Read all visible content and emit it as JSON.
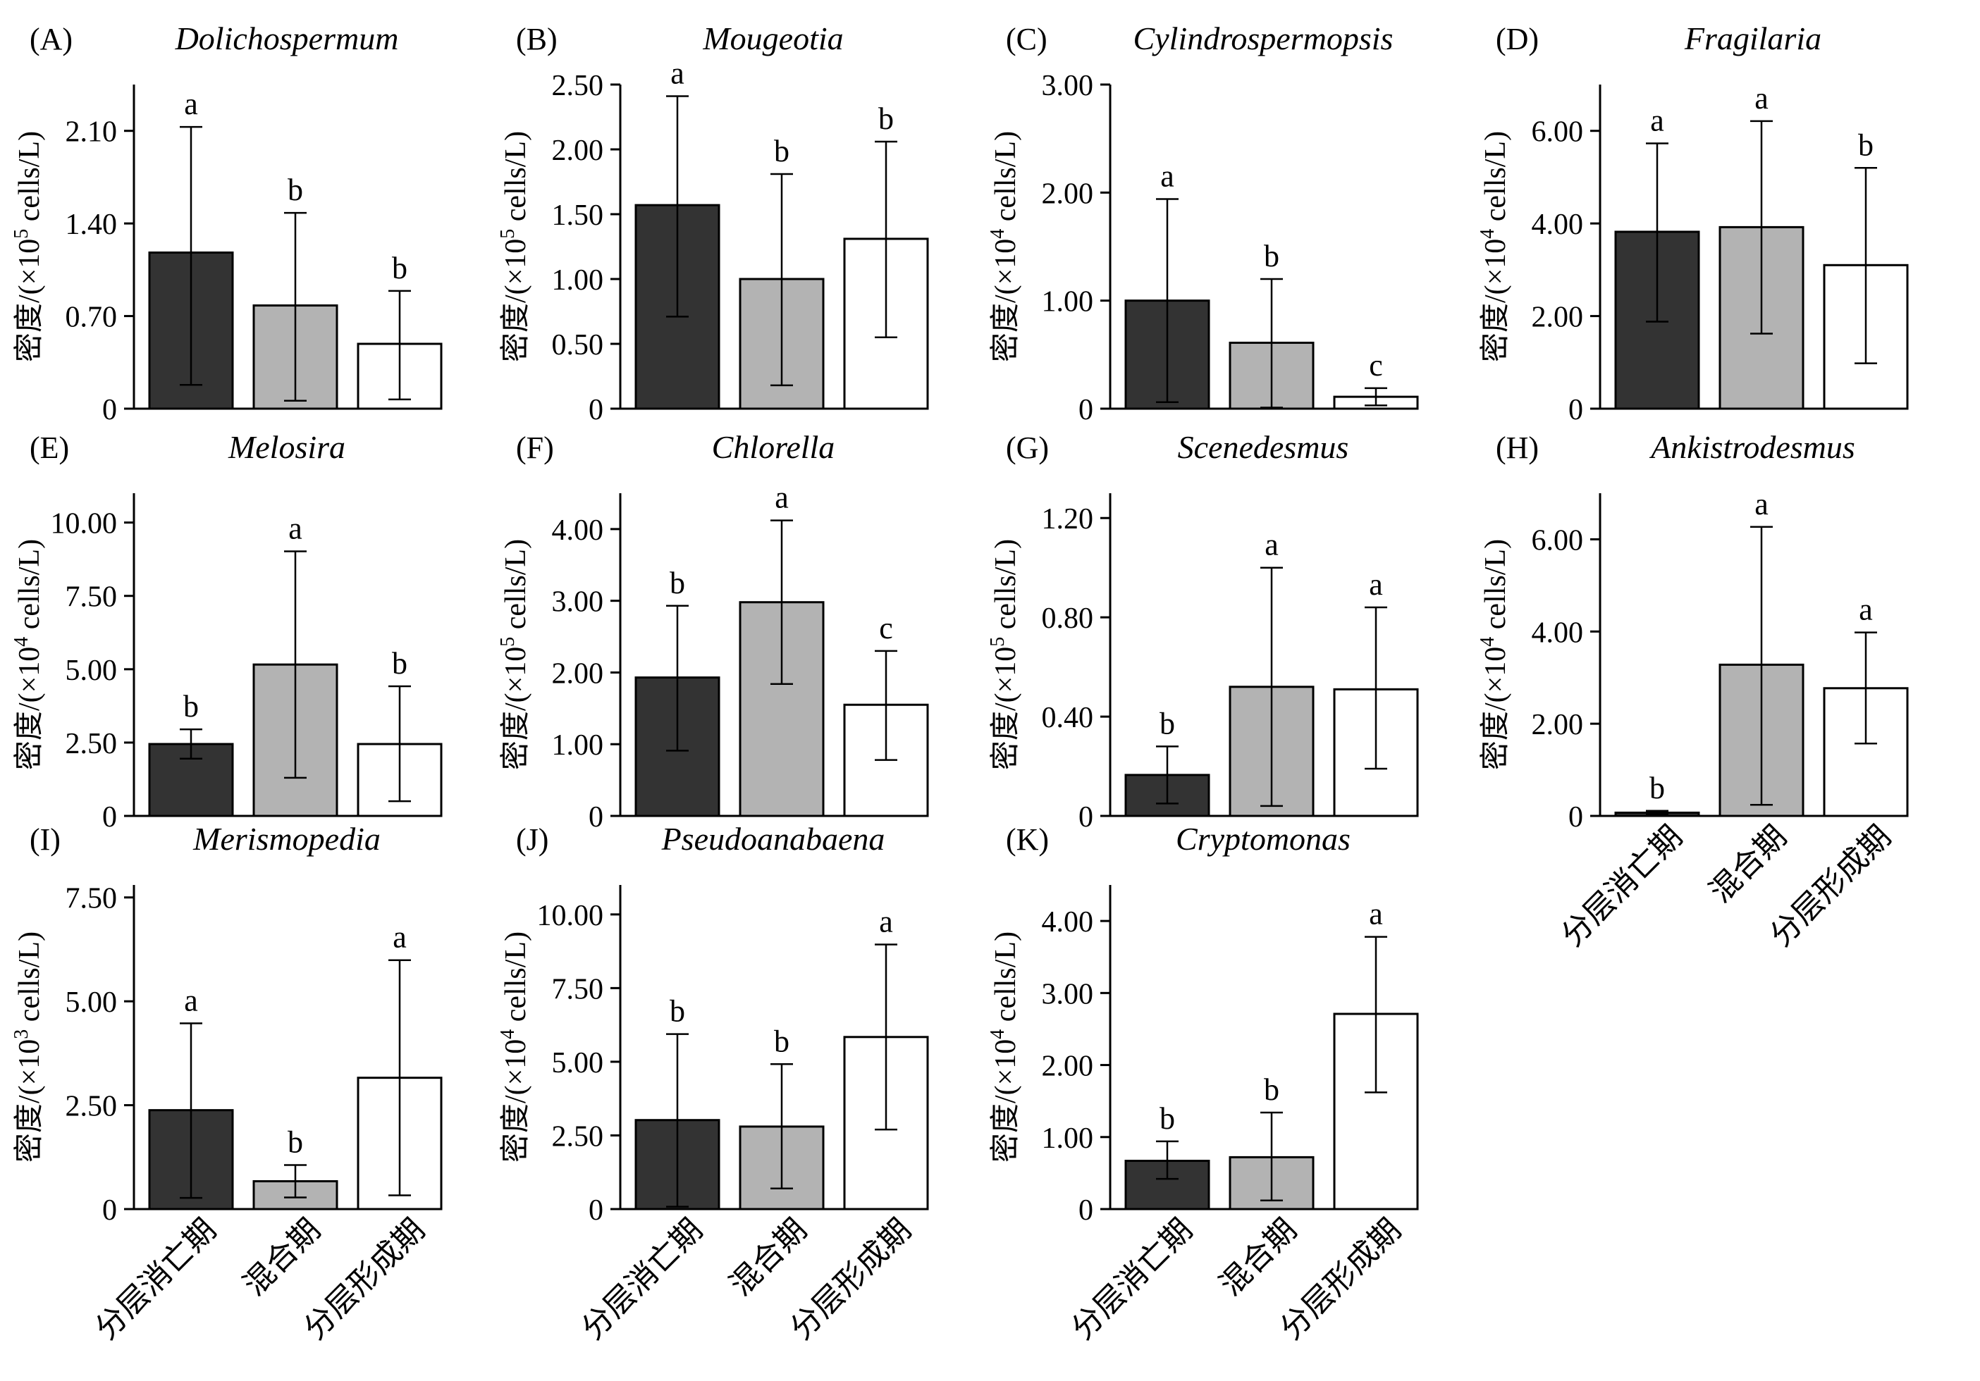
{
  "categories": [
    "分层消亡期",
    "混合期",
    "分层形成期"
  ],
  "colors": {
    "series": [
      "#333333",
      "#b3b3b3",
      "#ffffff"
    ],
    "axis": "#000000"
  },
  "chart_data": [
    {
      "id": "A",
      "panel_label": "(A)",
      "title": "Dolichospermum",
      "type": "bar",
      "ylabel_prefix": "密度/(×10",
      "ylabel_exp": "5",
      "ylabel_suffix": " cells/L)",
      "ylim": [
        0,
        2.45
      ],
      "yticks": [
        0,
        0.7,
        1.4,
        2.1
      ],
      "ytick_labels": [
        "0",
        "0.70",
        "1.40",
        "2.10"
      ],
      "values": [
        1.18,
        0.78,
        0.49
      ],
      "err_low": [
        0.18,
        0.06,
        0.07
      ],
      "err_high": [
        2.13,
        1.48,
        0.89
      ],
      "letters": [
        "a",
        "b",
        "b"
      ]
    },
    {
      "id": "B",
      "panel_label": "(B)",
      "title": "Mougeotia",
      "type": "bar",
      "ylabel_prefix": "密度/(×10",
      "ylabel_exp": "5",
      "ylabel_suffix": " cells/L)",
      "ylim": [
        0,
        2.5
      ],
      "yticks": [
        0,
        0.5,
        1.0,
        1.5,
        2.0,
        2.5
      ],
      "ytick_labels": [
        "0",
        "0.50",
        "1.00",
        "1.50",
        "2.00",
        "2.50"
      ],
      "values": [
        1.57,
        1.0,
        1.31
      ],
      "err_low": [
        0.71,
        0.18,
        0.55
      ],
      "err_high": [
        2.41,
        1.81,
        2.06
      ],
      "letters": [
        "a",
        "b",
        "b"
      ]
    },
    {
      "id": "C",
      "panel_label": "(C)",
      "title": "Cylindrospermopsis",
      "type": "bar",
      "ylabel_prefix": "密度/(×10",
      "ylabel_exp": "4",
      "ylabel_suffix": " cells/L)",
      "ylim": [
        0,
        3.0
      ],
      "yticks": [
        0,
        1.0,
        2.0,
        3.0
      ],
      "ytick_labels": [
        "0",
        "1.00",
        "2.00",
        "3.00"
      ],
      "values": [
        1.0,
        0.61,
        0.11
      ],
      "err_low": [
        0.06,
        0.01,
        0.03
      ],
      "err_high": [
        1.94,
        1.2,
        0.19
      ],
      "letters": [
        "a",
        "b",
        "c"
      ]
    },
    {
      "id": "D",
      "panel_label": "(D)",
      "title": "Fragilaria",
      "type": "bar",
      "ylabel_prefix": "密度/(×10",
      "ylabel_exp": "4",
      "ylabel_suffix": " cells/L)",
      "ylim": [
        0,
        7.0
      ],
      "yticks": [
        0,
        2.0,
        4.0,
        6.0
      ],
      "ytick_labels": [
        "0",
        "2.00",
        "4.00",
        "6.00"
      ],
      "values": [
        3.82,
        3.92,
        3.1
      ],
      "err_low": [
        1.88,
        1.62,
        0.98
      ],
      "err_high": [
        5.73,
        6.21,
        5.2
      ],
      "letters": [
        "a",
        "a",
        "b"
      ]
    },
    {
      "id": "E",
      "panel_label": "(E)",
      "title": "Melosira",
      "type": "bar",
      "ylabel_prefix": "密度/(×10",
      "ylabel_exp": "4",
      "ylabel_suffix": " cells/L)",
      "ylim": [
        0,
        11.0
      ],
      "yticks": [
        0,
        2.5,
        5.0,
        7.5,
        10.0
      ],
      "ytick_labels": [
        "0",
        "2.50",
        "5.00",
        "7.50",
        "10.00"
      ],
      "values": [
        2.45,
        5.16,
        2.45
      ],
      "err_low": [
        1.95,
        1.3,
        0.5
      ],
      "err_high": [
        2.95,
        9.02,
        4.42
      ],
      "letters": [
        "b",
        "a",
        "b"
      ]
    },
    {
      "id": "F",
      "panel_label": "(F)",
      "title": "Chlorella",
      "type": "bar",
      "ylabel_prefix": "密度/(×10",
      "ylabel_exp": "5",
      "ylabel_suffix": " cells/L)",
      "ylim": [
        0,
        4.5
      ],
      "yticks": [
        0,
        1.0,
        2.0,
        3.0,
        4.0
      ],
      "ytick_labels": [
        "0",
        "1.00",
        "2.00",
        "3.00",
        "4.00"
      ],
      "values": [
        1.93,
        2.98,
        1.55
      ],
      "err_low": [
        0.91,
        1.84,
        0.78
      ],
      "err_high": [
        2.93,
        4.12,
        2.3
      ],
      "letters": [
        "b",
        "a",
        "c"
      ]
    },
    {
      "id": "G",
      "panel_label": "(G)",
      "title": "Scenedesmus",
      "type": "bar",
      "ylabel_prefix": "密度/(×10",
      "ylabel_exp": "5",
      "ylabel_suffix": " cells/L)",
      "ylim": [
        0,
        1.3
      ],
      "yticks": [
        0,
        0.4,
        0.8,
        1.2
      ],
      "ytick_labels": [
        "0",
        "0.40",
        "0.80",
        "1.20"
      ],
      "values": [
        0.165,
        0.52,
        0.51
      ],
      "err_low": [
        0.05,
        0.04,
        0.19
      ],
      "err_high": [
        0.28,
        1.0,
        0.84
      ],
      "letters": [
        "b",
        "a",
        "a"
      ]
    },
    {
      "id": "H",
      "panel_label": "(H)",
      "title": "Ankistrodesmus",
      "type": "bar",
      "ylabel_prefix": "密度/(×10",
      "ylabel_exp": "4",
      "ylabel_suffix": " cells/L)",
      "ylim": [
        0,
        7.0
      ],
      "yticks": [
        0,
        2.0,
        4.0,
        6.0
      ],
      "ytick_labels": [
        "0",
        "2.00",
        "4.00",
        "6.00"
      ],
      "values": [
        0.07,
        3.28,
        2.77
      ],
      "err_low": [
        0.03,
        0.24,
        1.57
      ],
      "err_high": [
        0.11,
        6.27,
        3.98
      ],
      "letters": [
        "b",
        "a",
        "a"
      ]
    },
    {
      "id": "I",
      "panel_label": "(I)",
      "title": "Merismopedia",
      "type": "bar",
      "ylabel_prefix": "密度/(×10",
      "ylabel_exp": "3",
      "ylabel_suffix": " cells/L)",
      "ylim": [
        0,
        7.8
      ],
      "yticks": [
        0,
        2.5,
        5.0,
        7.5
      ],
      "ytick_labels": [
        "0",
        "2.50",
        "5.00",
        "7.50"
      ],
      "values": [
        2.38,
        0.67,
        3.16
      ],
      "err_low": [
        0.27,
        0.28,
        0.33
      ],
      "err_high": [
        4.47,
        1.06,
        5.99
      ],
      "letters": [
        "a",
        "b",
        "a"
      ]
    },
    {
      "id": "J",
      "panel_label": "(J)",
      "title": "Pseudoanabaena",
      "type": "bar",
      "ylabel_prefix": "密度/(×10",
      "ylabel_exp": "4",
      "ylabel_suffix": " cells/L)",
      "ylim": [
        0,
        11.0
      ],
      "yticks": [
        0,
        2.5,
        5.0,
        7.5,
        10.0
      ],
      "ytick_labels": [
        "0",
        "2.50",
        "5.00",
        "7.50",
        "10.00"
      ],
      "values": [
        3.02,
        2.8,
        5.84
      ],
      "err_low": [
        0.08,
        0.7,
        2.7
      ],
      "err_high": [
        5.94,
        4.92,
        8.98
      ],
      "letters": [
        "b",
        "b",
        "a"
      ]
    },
    {
      "id": "K",
      "panel_label": "(K)",
      "title": "Cryptomonas",
      "type": "bar",
      "ylabel_prefix": "密度/(×10",
      "ylabel_exp": "4",
      "ylabel_suffix": " cells/L)",
      "ylim": [
        0,
        4.5
      ],
      "yticks": [
        0,
        1.0,
        2.0,
        3.0,
        4.0
      ],
      "ytick_labels": [
        "0",
        "1.00",
        "2.00",
        "3.00",
        "4.00"
      ],
      "values": [
        0.67,
        0.72,
        2.71
      ],
      "err_low": [
        0.42,
        0.12,
        1.62
      ],
      "err_high": [
        0.94,
        1.34,
        3.78
      ],
      "letters": [
        "b",
        "b",
        "a"
      ]
    }
  ]
}
